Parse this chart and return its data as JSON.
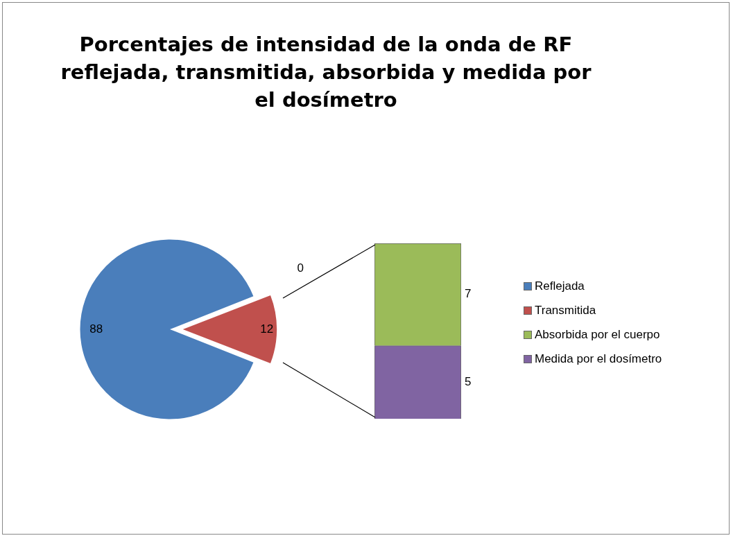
{
  "chart_data": [
    {
      "type": "pie",
      "title": "Porcentajes de intensidad de la onda de RF reflejada, transmitida, absorbida y medida por el dosímetro",
      "categories": [
        "Reflejada",
        "Transmitida"
      ],
      "values": [
        88,
        12
      ],
      "colors": [
        "#4a7ebb",
        "#c0504d"
      ],
      "data_labels": true,
      "annotations": [
        "0"
      ],
      "legend": "right"
    },
    {
      "type": "bar",
      "stacked": true,
      "categories": [
        null
      ],
      "series": [
        {
          "name": "Medida por el dosímetro",
          "color": "#8064a2",
          "values": [
            5
          ]
        },
        {
          "name": "Absorbida por el cuerpo",
          "color": "#9bbb59",
          "values": [
            7
          ]
        }
      ],
      "data_labels": true,
      "legend": "right"
    }
  ]
}
